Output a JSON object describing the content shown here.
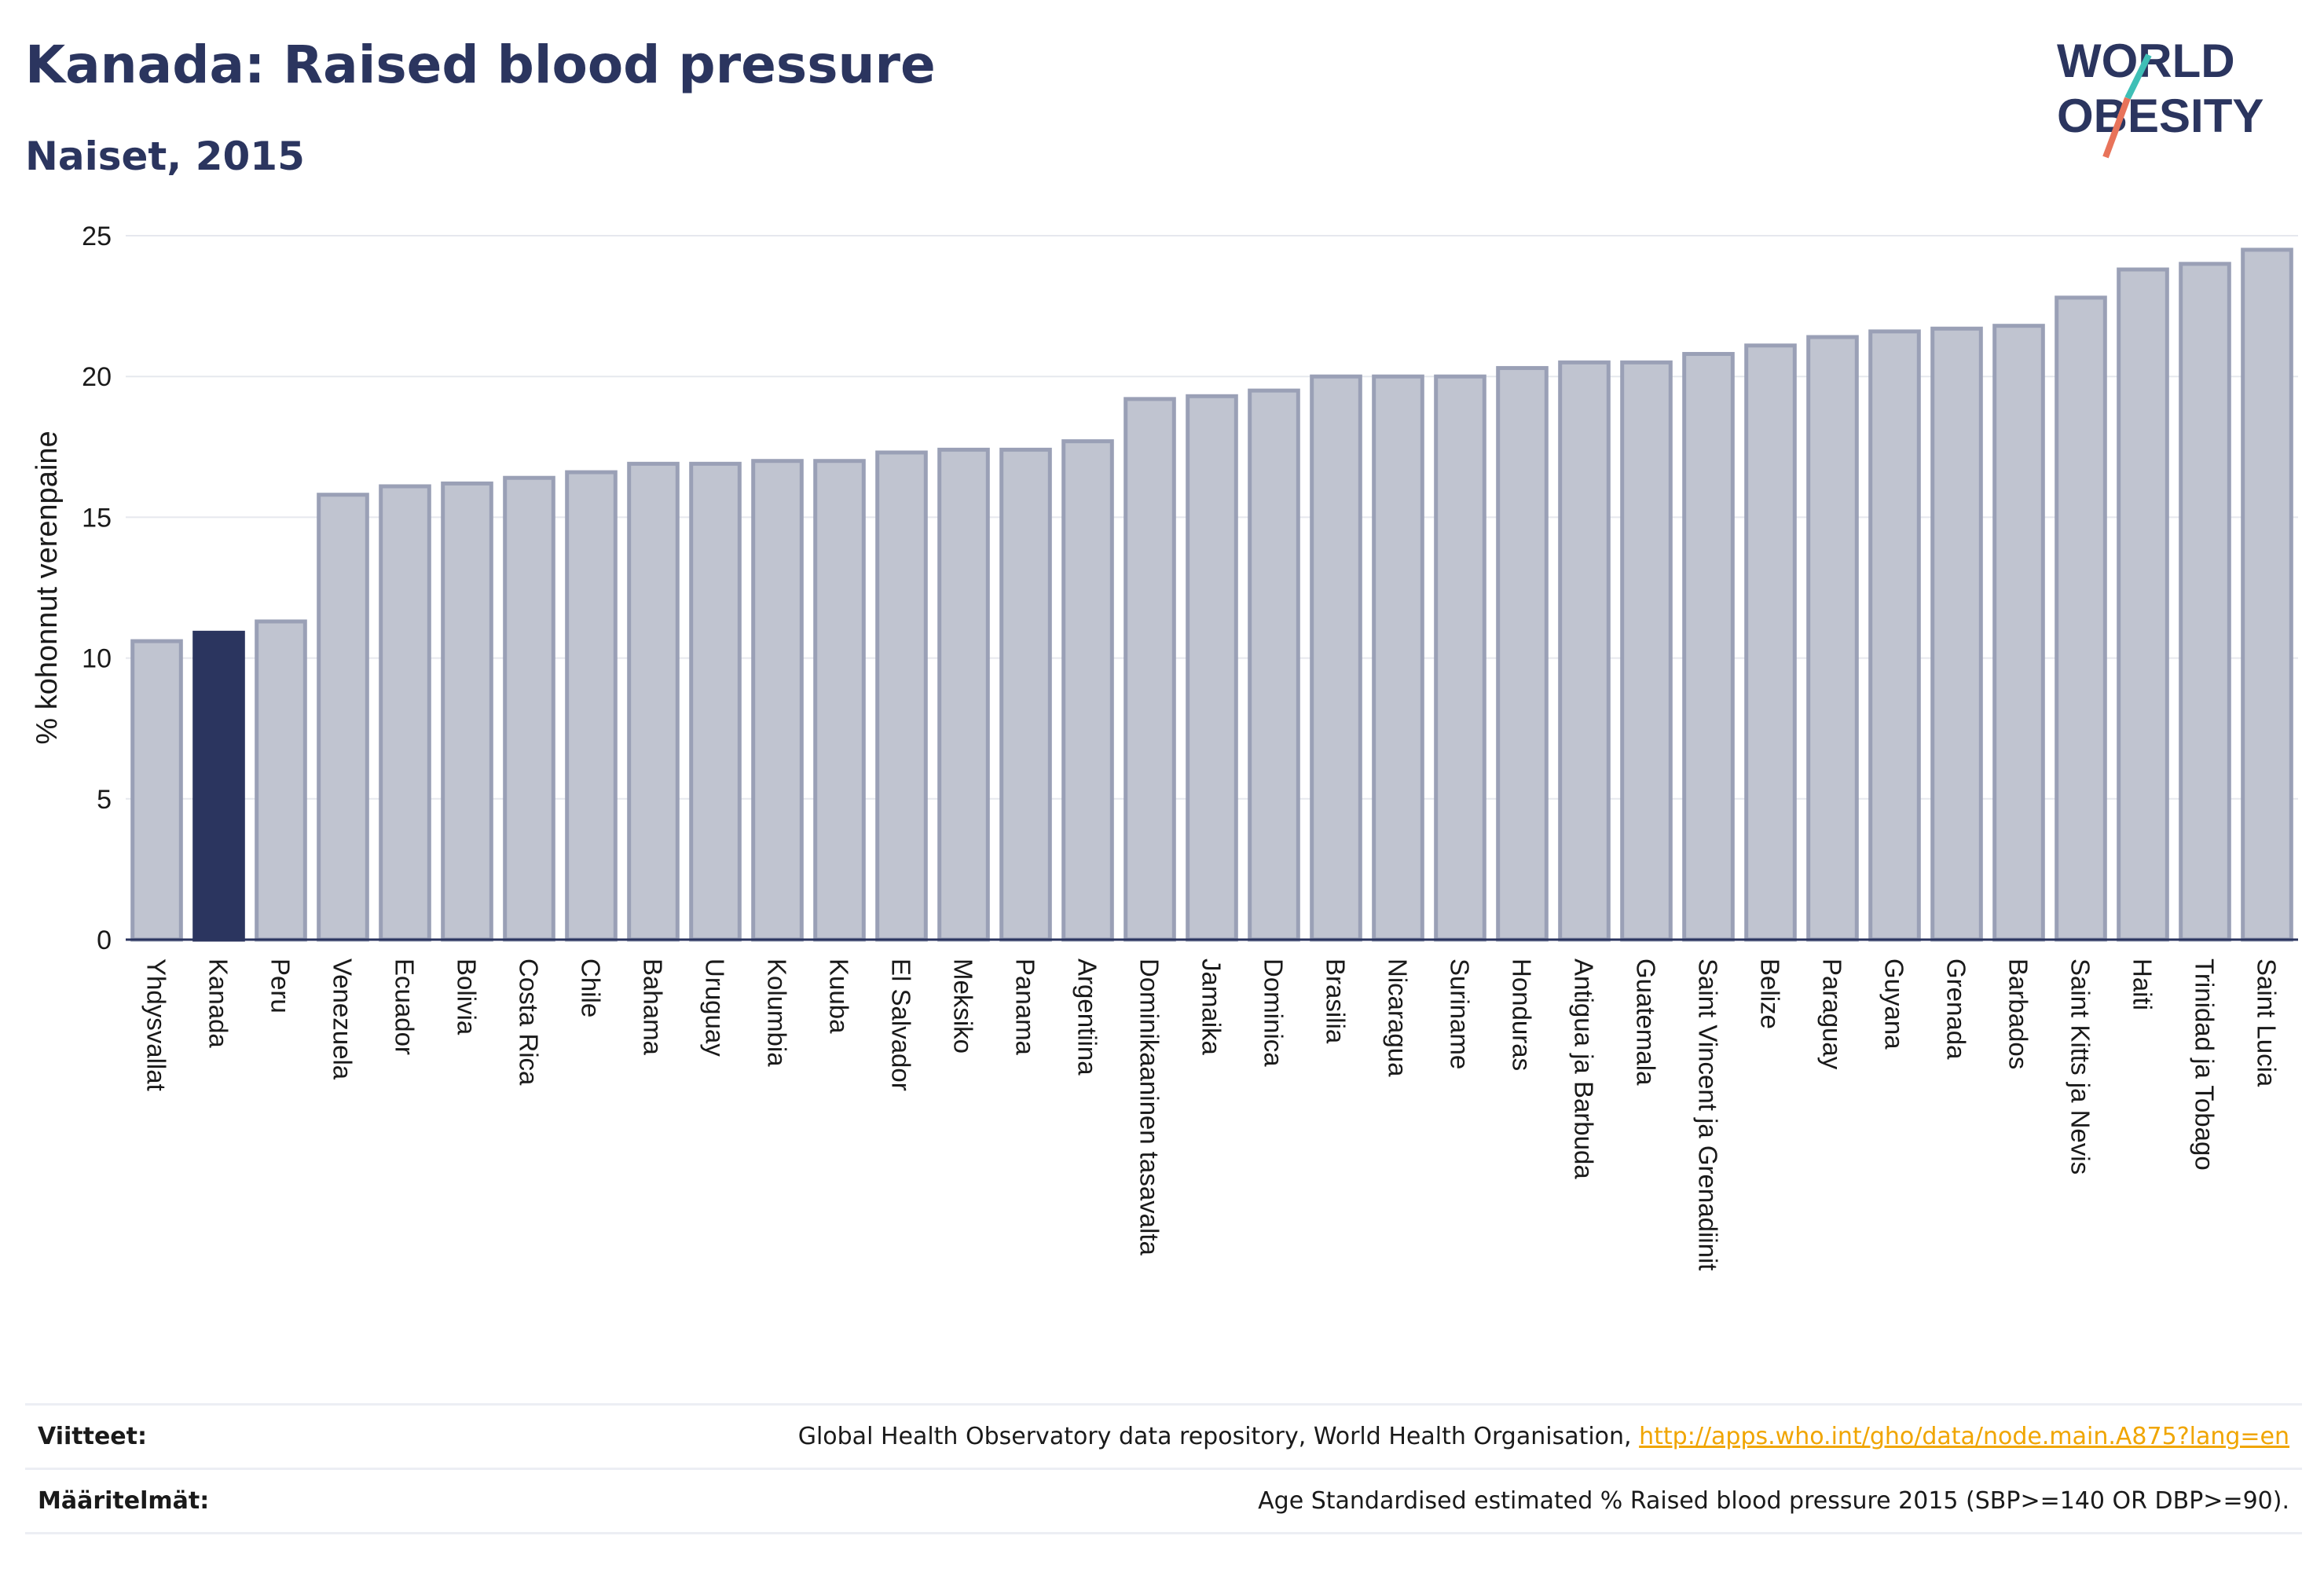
{
  "header": {
    "title": "Kanada: Raised blood pressure",
    "subtitle": "Naiset, 2015"
  },
  "logo": {
    "line1": "WORLD",
    "line2": "OBESITY"
  },
  "colors": {
    "highlight_bar": "#2b355f",
    "other_bar_fill": "#c0c4d0",
    "other_bar_stroke": "#9aa0b6",
    "accent_teal": "#3fbfb6",
    "accent_coral": "#e8735a"
  },
  "chart_data": {
    "type": "bar",
    "ylabel": "% kohonnut verenpaine",
    "ylim": [
      0,
      25
    ],
    "yticks": [
      0,
      5,
      10,
      15,
      20,
      25
    ],
    "grid": true,
    "highlight": "Kanada",
    "categories": [
      "Yhdysvallat",
      "Kanada",
      "Peru",
      "Venezuela",
      "Ecuador",
      "Bolivia",
      "Costa Rica",
      "Chile",
      "Bahama",
      "Uruguay",
      "Kolumbia",
      "Kuuba",
      "El Salvador",
      "Meksiko",
      "Panama",
      "Argentiina",
      "Dominikaaninen tasavalta",
      "Jamaika",
      "Dominica",
      "Brasilia",
      "Nicaragua",
      "Suriname",
      "Honduras",
      "Antigua ja Barbuda",
      "Guatemala",
      "Saint Vincent ja Grenadiinit",
      "Belize",
      "Paraguay",
      "Guyana",
      "Grenada",
      "Barbados",
      "Saint Kitts ja Nevis",
      "Haiti",
      "Trinidad ja Tobago",
      "Saint Lucia"
    ],
    "values": [
      10.6,
      10.9,
      11.3,
      15.8,
      16.1,
      16.2,
      16.4,
      16.6,
      16.9,
      16.9,
      17.0,
      17.0,
      17.3,
      17.4,
      17.4,
      17.7,
      19.2,
      19.3,
      19.5,
      20.0,
      20.0,
      20.0,
      20.3,
      20.5,
      20.5,
      20.8,
      21.1,
      21.4,
      21.6,
      21.7,
      21.8,
      22.8,
      23.8,
      24.0,
      24.5
    ]
  },
  "footer": {
    "sources_label": "Viitteet:",
    "sources_text": "Global Health Observatory data repository, World Health Organisation,",
    "sources_link": "http://apps.who.int/gho/data/node.main.A875?lang=en",
    "definitions_label": "Määritelmät:",
    "definitions_text": "Age Standardised estimated % Raised blood pressure 2015 (SBP>=140 OR DBP>=90)."
  }
}
